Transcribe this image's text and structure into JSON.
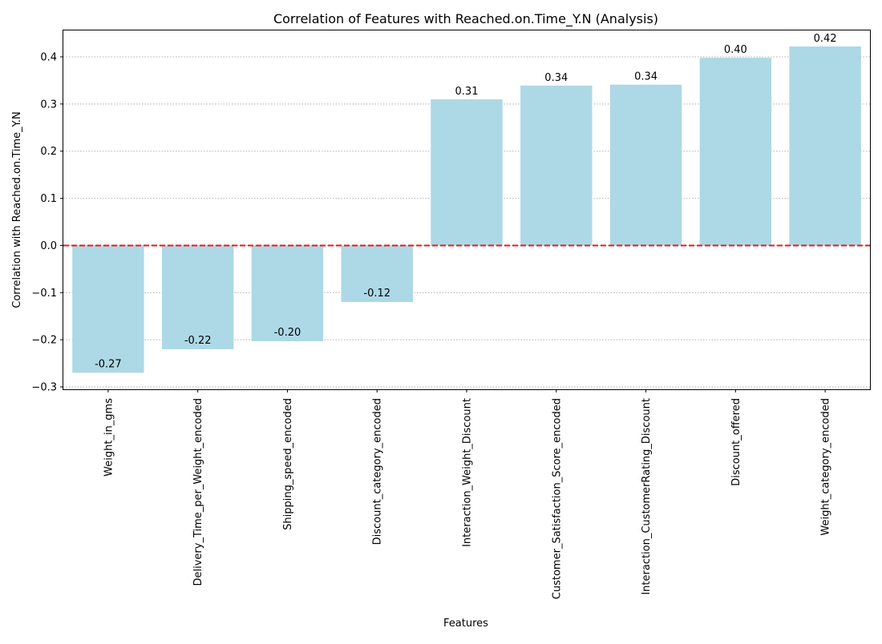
{
  "chart_data": {
    "type": "bar",
    "title": "Correlation of Features with Reached.on.Time_Y.N (Analysis)",
    "xlabel": "Features",
    "ylabel": "Correlation with Reached.on.Time_Y.N",
    "categories": [
      "Weight_in_gms",
      "Delivery_Time_per_Weight_encoded",
      "Shipping_speed_encoded",
      "Discount_category_encoded",
      "Interaction_Weight_Discount",
      "Customer_Satisfaction_Score_encoded",
      "Interaction_CustomerRating_Discount",
      "Discount_offered",
      "Weight_category_encoded"
    ],
    "values": [
      -0.27,
      -0.22,
      -0.203,
      -0.12,
      0.31,
      0.339,
      0.341,
      0.398,
      0.422
    ],
    "data_labels": [
      "-0.27",
      "-0.22",
      "-0.20",
      "-0.12",
      "0.31",
      "0.34",
      "0.34",
      "0.40",
      "0.42"
    ],
    "ylim": [
      -0.305,
      0.456
    ],
    "yticks": [
      -0.3,
      -0.2,
      -0.1,
      0.0,
      0.1,
      0.2,
      0.3,
      0.4
    ],
    "ytick_labels": [
      "−0.3",
      "−0.2",
      "−0.1",
      "0.0",
      "0.1",
      "0.2",
      "0.3",
      "0.4"
    ],
    "grid": "y-dotted",
    "reference_line": {
      "y": 0,
      "style": "dashed",
      "color": "#e41a1c"
    },
    "colors": {
      "bar": "#add8e6",
      "grid": "#b0b0b0",
      "axis": "#000000",
      "reference": "#e41a1c"
    }
  }
}
